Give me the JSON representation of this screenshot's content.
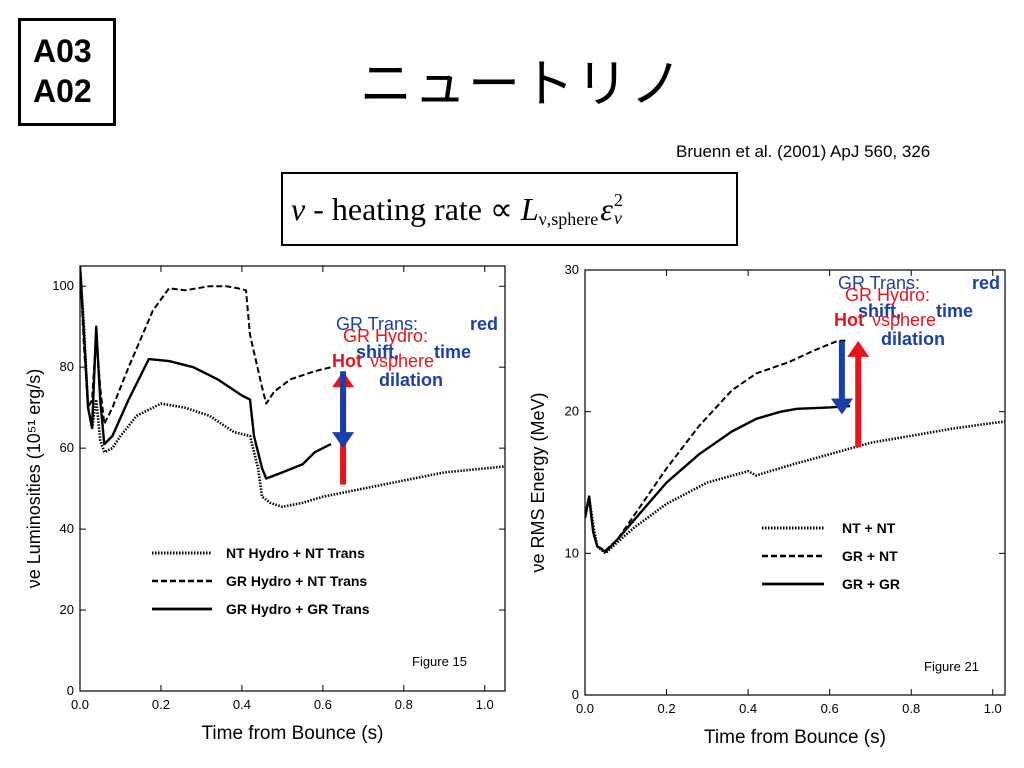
{
  "slide": {
    "labels": [
      "A03",
      "A02"
    ],
    "title": "ニュートリノ",
    "citation": "Bruenn et al. (2001) ApJ 560, 326",
    "formula": {
      "nu": "ν",
      "text": " - heating rate ∝ ",
      "L": "L",
      "L_sub": "ν,sphere",
      "eps": "ε",
      "eps_sup": "2",
      "eps_sub": "ν"
    }
  },
  "chart_data": [
    {
      "type": "line",
      "figure_label": "Figure 15",
      "xlabel": "Time from Bounce (s)",
      "ylabel": "νe Luminosities (10⁵¹ erg/s)",
      "xlim": [
        0.0,
        1.05
      ],
      "ylim": [
        0,
        105
      ],
      "xticks": [
        0.0,
        0.2,
        0.4,
        0.6,
        0.8,
        1.0
      ],
      "xtick_labels": [
        "0.0",
        "0.2",
        "0.4",
        "0.6",
        "0.8",
        "1.0"
      ],
      "yticks": [
        0,
        20,
        40,
        60,
        80,
        100
      ],
      "ytick_labels": [
        "0",
        "20",
        "40",
        "60",
        "80",
        "100"
      ],
      "legend": [
        {
          "name": "NT Hydro + NT Trans",
          "style": "dotted"
        },
        {
          "name": "GR Hydro + NT Trans",
          "style": "dashed"
        },
        {
          "name": "GR Hydro + GR Trans",
          "style": "solid"
        }
      ],
      "series": [
        {
          "style": "dotted",
          "points": [
            [
              0.0,
              105
            ],
            [
              0.01,
              90
            ],
            [
              0.02,
              70
            ],
            [
              0.03,
              65
            ],
            [
              0.04,
              72
            ],
            [
              0.05,
              62
            ],
            [
              0.06,
              59
            ],
            [
              0.08,
              60
            ],
            [
              0.1,
              63
            ],
            [
              0.14,
              68
            ],
            [
              0.2,
              71
            ],
            [
              0.26,
              70
            ],
            [
              0.32,
              68
            ],
            [
              0.38,
              64
            ],
            [
              0.42,
              63
            ],
            [
              0.44,
              55
            ],
            [
              0.45,
              48
            ],
            [
              0.47,
              46.5
            ],
            [
              0.5,
              45.5
            ],
            [
              0.55,
              46.5
            ],
            [
              0.6,
              48
            ],
            [
              0.7,
              50
            ],
            [
              0.8,
              52
            ],
            [
              0.9,
              54
            ],
            [
              1.0,
              55
            ],
            [
              1.05,
              55.5
            ]
          ]
        },
        {
          "style": "dashed",
          "points": [
            [
              0.0,
              105
            ],
            [
              0.01,
              85
            ],
            [
              0.02,
              70
            ],
            [
              0.03,
              72
            ],
            [
              0.04,
              88
            ],
            [
              0.05,
              75
            ],
            [
              0.06,
              66
            ],
            [
              0.08,
              70
            ],
            [
              0.12,
              80
            ],
            [
              0.18,
              94
            ],
            [
              0.22,
              99.5
            ],
            [
              0.26,
              99
            ],
            [
              0.32,
              100
            ],
            [
              0.36,
              100
            ],
            [
              0.39,
              99.5
            ],
            [
              0.41,
              99
            ],
            [
              0.42,
              88
            ],
            [
              0.45,
              75
            ],
            [
              0.46,
              71
            ],
            [
              0.48,
              74
            ],
            [
              0.52,
              77
            ],
            [
              0.58,
              79
            ],
            [
              0.62,
              80
            ]
          ]
        },
        {
          "style": "solid",
          "points": [
            [
              0.0,
              105
            ],
            [
              0.01,
              88
            ],
            [
              0.02,
              70
            ],
            [
              0.03,
              65
            ],
            [
              0.04,
              90
            ],
            [
              0.05,
              72
            ],
            [
              0.06,
              61
            ],
            [
              0.08,
              63
            ],
            [
              0.12,
              72
            ],
            [
              0.17,
              82
            ],
            [
              0.22,
              81.5
            ],
            [
              0.28,
              80
            ],
            [
              0.34,
              77
            ],
            [
              0.4,
              73
            ],
            [
              0.42,
              72
            ],
            [
              0.43,
              63
            ],
            [
              0.45,
              55
            ],
            [
              0.46,
              52.5
            ],
            [
              0.5,
              54
            ],
            [
              0.55,
              56
            ],
            [
              0.58,
              59
            ],
            [
              0.62,
              61
            ]
          ]
        }
      ],
      "annotations": {
        "gr_trans": "GR Trans:",
        "red": "red",
        "shift": "shift,",
        "time": "time",
        "dilation": "dilation",
        "gr_hydro": "GR Hydro:",
        "hot": "Hot",
        "vsphere": "νsphere"
      },
      "arrows": [
        {
          "color": "#e8141c",
          "x": 0.65,
          "from_y": 51,
          "to_y": 79
        },
        {
          "color": "#1b3fa8",
          "x": 0.65,
          "from_y": 79,
          "to_y": 60
        }
      ]
    },
    {
      "type": "line",
      "figure_label": "Figure 21",
      "xlabel": "Time from Bounce (s)",
      "ylabel": "νe RMS Energy (MeV)",
      "xlim": [
        0.0,
        1.03
      ],
      "ylim": [
        0,
        30
      ],
      "xticks": [
        0.0,
        0.2,
        0.4,
        0.6,
        0.8,
        1.0
      ],
      "xtick_labels": [
        "0.0",
        "0.2",
        "0.4",
        "0.6",
        "0.8",
        "1.0"
      ],
      "yticks": [
        0,
        10,
        20,
        30
      ],
      "ytick_labels": [
        "0",
        "10",
        "20",
        "30"
      ],
      "legend": [
        {
          "name": "NT + NT",
          "style": "dotted"
        },
        {
          "name": "GR + NT",
          "style": "dashed"
        },
        {
          "name": "GR + GR",
          "style": "solid"
        }
      ],
      "series": [
        {
          "style": "dotted",
          "points": [
            [
              0.0,
              12.5
            ],
            [
              0.01,
              14
            ],
            [
              0.02,
              12
            ],
            [
              0.03,
              10.5
            ],
            [
              0.05,
              10
            ],
            [
              0.08,
              10.8
            ],
            [
              0.12,
              11.8
            ],
            [
              0.2,
              13.5
            ],
            [
              0.3,
              15
            ],
            [
              0.4,
              15.8
            ],
            [
              0.42,
              15.5
            ],
            [
              0.5,
              16.2
            ],
            [
              0.6,
              17
            ],
            [
              0.7,
              17.8
            ],
            [
              0.8,
              18.3
            ],
            [
              0.9,
              18.8
            ],
            [
              1.0,
              19.2
            ],
            [
              1.03,
              19.3
            ]
          ]
        },
        {
          "style": "dashed",
          "points": [
            [
              0.0,
              12.5
            ],
            [
              0.01,
              14
            ],
            [
              0.02,
              11.5
            ],
            [
              0.03,
              10.5
            ],
            [
              0.05,
              10.2
            ],
            [
              0.08,
              11
            ],
            [
              0.14,
              13.5
            ],
            [
              0.2,
              16
            ],
            [
              0.28,
              19
            ],
            [
              0.36,
              21.5
            ],
            [
              0.42,
              22.7
            ],
            [
              0.5,
              23.5
            ],
            [
              0.56,
              24.3
            ],
            [
              0.62,
              25
            ],
            [
              0.64,
              25
            ]
          ]
        },
        {
          "style": "solid",
          "points": [
            [
              0.0,
              12.5
            ],
            [
              0.01,
              14
            ],
            [
              0.02,
              11.5
            ],
            [
              0.03,
              10.5
            ],
            [
              0.05,
              10.1
            ],
            [
              0.08,
              11
            ],
            [
              0.14,
              13
            ],
            [
              0.2,
              15
            ],
            [
              0.28,
              17
            ],
            [
              0.36,
              18.6
            ],
            [
              0.42,
              19.5
            ],
            [
              0.48,
              20
            ],
            [
              0.52,
              20.2
            ],
            [
              0.6,
              20.3
            ],
            [
              0.65,
              20.4
            ]
          ]
        }
      ],
      "annotations": {
        "gr_trans": "GR Trans:",
        "red": "red",
        "shift": "shift,",
        "time": "time",
        "dilation": "dilation",
        "gr_hydro": "GR Hydro:",
        "hot": "Hot",
        "vsphere": "νsphere"
      },
      "arrows": [
        {
          "color": "#e8141c",
          "x": 0.67,
          "from_y": 17.5,
          "to_y": 25
        },
        {
          "color": "#1b3fa8",
          "x": 0.63,
          "from_y": 25,
          "to_y": 19.8
        }
      ]
    }
  ]
}
